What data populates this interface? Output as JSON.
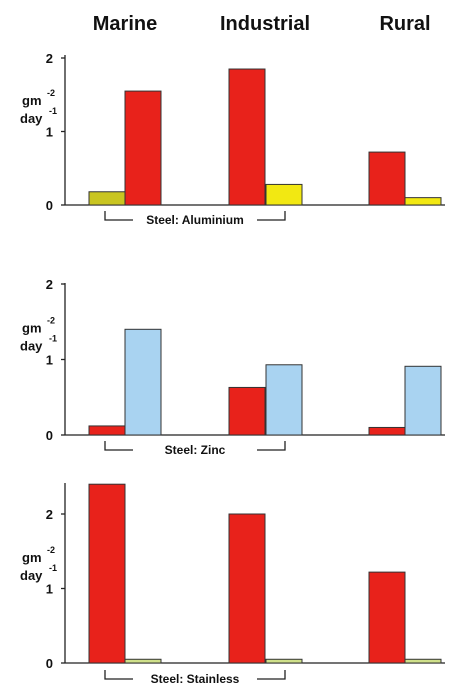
{
  "environments": [
    "Marine",
    "Industrial",
    "Rural"
  ],
  "unit": {
    "main": "gm",
    "sup1": "-2",
    "sub": "day",
    "sup2": "-1"
  },
  "colors": {
    "steel": "#e8221b",
    "aluminium": "#f2e812",
    "aluminium_marine": "#c9c521",
    "zinc": "#a9d3f1",
    "stainless": "#cfe08a"
  },
  "chart_data": [
    {
      "type": "bar",
      "pair_label": "Steel: Aluminium",
      "categories": [
        "Marine",
        "Industrial",
        "Rural"
      ],
      "ylim": [
        0,
        2
      ],
      "yticks": [
        "0",
        "1",
        "2"
      ],
      "series": [
        {
          "key": "steel",
          "values": [
            1.55,
            1.85,
            0.72
          ]
        },
        {
          "key": "aluminium",
          "values": [
            0.18,
            0.28,
            0.1
          ]
        }
      ]
    },
    {
      "type": "bar",
      "pair_label": "Steel: Zinc",
      "categories": [
        "Marine",
        "Industrial",
        "Rural"
      ],
      "ylim": [
        0,
        2
      ],
      "yticks": [
        "0",
        "1",
        "2"
      ],
      "series": [
        {
          "key": "steel",
          "values": [
            0.12,
            0.63,
            0.1
          ]
        },
        {
          "key": "zinc",
          "values": [
            1.4,
            0.93,
            0.91
          ]
        }
      ]
    },
    {
      "type": "bar",
      "pair_label": "Steel: Stainless",
      "categories": [
        "Marine",
        "Industrial",
        "Rural"
      ],
      "ylim": [
        0,
        2.3
      ],
      "yticks": [
        "0",
        "1",
        "2"
      ],
      "series": [
        {
          "key": "steel",
          "values": [
            2.4,
            2.0,
            1.22
          ]
        },
        {
          "key": "stainless",
          "values": [
            0.05,
            0.05,
            0.05
          ]
        }
      ]
    }
  ]
}
